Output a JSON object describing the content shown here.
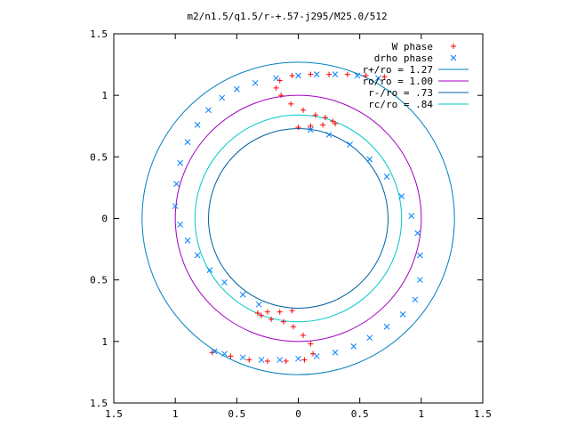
{
  "chart_data": {
    "type": "scatter",
    "title": "m2/n1.5/q1.5/r-+.57-j295/M25.0/512",
    "xlabel": "",
    "ylabel": "",
    "xlim": [
      -1.5,
      1.5
    ],
    "ylim": [
      -1.5,
      1.5
    ],
    "x_ticks": [
      -1.5,
      -1,
      -0.5,
      0,
      0.5,
      1,
      1.5
    ],
    "y_ticks": [
      -1.5,
      -1,
      -0.5,
      0,
      0.5,
      1,
      1.5
    ],
    "x_tick_labels": [
      "1.5",
      "1",
      "0.5",
      "0",
      "0.5",
      "1",
      "1.5"
    ],
    "y_tick_labels": [
      "1.5",
      "1",
      "0.5",
      "0",
      "0.5",
      "1",
      "1.5"
    ],
    "grid": false,
    "legend_position": "top-right",
    "legend": [
      {
        "label": "W phase",
        "color": "#ff0000",
        "marker": "plus"
      },
      {
        "label": "drho phase",
        "color": "#0080ff",
        "marker": "cross"
      },
      {
        "label": "r+/ro = 1.27",
        "color": "#0080c0",
        "marker": "line"
      },
      {
        "label": "ro/ro = 1.00",
        "color": "#a000c0",
        "marker": "line"
      },
      {
        "label": "r-/ro = .73",
        "color": "#0060a0",
        "marker": "line"
      },
      {
        "label": "rc/ro = .84",
        "color": "#00c8c8",
        "marker": "line"
      }
    ],
    "circles": [
      {
        "name": "r+/ro = 1.27",
        "r": 1.27,
        "color": "#0080c0"
      },
      {
        "name": "ro/ro = 1.00",
        "r": 1.0,
        "color": "#a000c0"
      },
      {
        "name": "r-/ro = .73",
        "r": 0.73,
        "color": "#0060a0"
      },
      {
        "name": "rc/ro = .84",
        "r": 0.84,
        "color": "#00c8c8"
      }
    ],
    "series": [
      {
        "name": "W phase",
        "color": "#ff0000",
        "marker": "plus",
        "points": [
          [
            0.7,
            1.15
          ],
          [
            0.55,
            1.16
          ],
          [
            0.4,
            1.17
          ],
          [
            0.25,
            1.17
          ],
          [
            0.1,
            1.17
          ],
          [
            -0.05,
            1.16
          ],
          [
            -0.15,
            1.12
          ],
          [
            -0.18,
            1.06
          ],
          [
            -0.14,
            1.0
          ],
          [
            -0.06,
            0.93
          ],
          [
            0.04,
            0.88
          ],
          [
            0.14,
            0.84
          ],
          [
            0.22,
            0.82
          ],
          [
            0.28,
            0.79
          ],
          [
            0.3,
            0.77
          ],
          [
            0.2,
            0.76
          ],
          [
            0.1,
            0.75
          ],
          [
            0.0,
            0.74
          ],
          [
            -0.7,
            -1.09
          ],
          [
            -0.55,
            -1.12
          ],
          [
            -0.4,
            -1.15
          ],
          [
            -0.25,
            -1.16
          ],
          [
            -0.1,
            -1.16
          ],
          [
            0.05,
            -1.15
          ],
          [
            0.12,
            -1.1
          ],
          [
            0.1,
            -1.02
          ],
          [
            0.04,
            -0.95
          ],
          [
            -0.04,
            -0.88
          ],
          [
            -0.12,
            -0.84
          ],
          [
            -0.22,
            -0.82
          ],
          [
            -0.3,
            -0.79
          ],
          [
            -0.33,
            -0.77
          ],
          [
            -0.25,
            -0.76
          ],
          [
            -0.15,
            -0.76
          ],
          [
            -0.05,
            -0.75
          ]
        ]
      },
      {
        "name": "drho phase",
        "color": "#0080ff",
        "marker": "cross",
        "points": [
          [
            0.65,
            1.14
          ],
          [
            0.48,
            1.16
          ],
          [
            0.3,
            1.17
          ],
          [
            0.15,
            1.17
          ],
          [
            0.0,
            1.16
          ],
          [
            -0.18,
            1.14
          ],
          [
            -0.35,
            1.1
          ],
          [
            -0.5,
            1.05
          ],
          [
            -0.62,
            0.98
          ],
          [
            -0.73,
            0.88
          ],
          [
            -0.82,
            0.76
          ],
          [
            -0.9,
            0.62
          ],
          [
            -0.96,
            0.45
          ],
          [
            -0.99,
            0.28
          ],
          [
            -1.0,
            0.1
          ],
          [
            -0.96,
            -0.05
          ],
          [
            -0.9,
            -0.18
          ],
          [
            -0.82,
            -0.3
          ],
          [
            -0.72,
            -0.42
          ],
          [
            -0.6,
            -0.52
          ],
          [
            -0.45,
            -0.62
          ],
          [
            -0.32,
            -0.7
          ],
          [
            0.1,
            0.72
          ],
          [
            0.25,
            0.68
          ],
          [
            0.42,
            0.6
          ],
          [
            0.58,
            0.48
          ],
          [
            0.72,
            0.34
          ],
          [
            0.84,
            0.18
          ],
          [
            0.92,
            0.02
          ],
          [
            0.97,
            -0.12
          ],
          [
            0.99,
            -0.3
          ],
          [
            0.99,
            -0.5
          ],
          [
            0.95,
            -0.66
          ],
          [
            0.85,
            -0.78
          ],
          [
            0.72,
            -0.88
          ],
          [
            0.58,
            -0.97
          ],
          [
            0.45,
            -1.04
          ],
          [
            0.3,
            -1.09
          ],
          [
            0.15,
            -1.12
          ],
          [
            0.0,
            -1.14
          ],
          [
            -0.15,
            -1.15
          ],
          [
            -0.3,
            -1.15
          ],
          [
            -0.45,
            -1.13
          ],
          [
            -0.6,
            -1.1
          ],
          [
            -0.68,
            -1.08
          ]
        ]
      }
    ]
  }
}
